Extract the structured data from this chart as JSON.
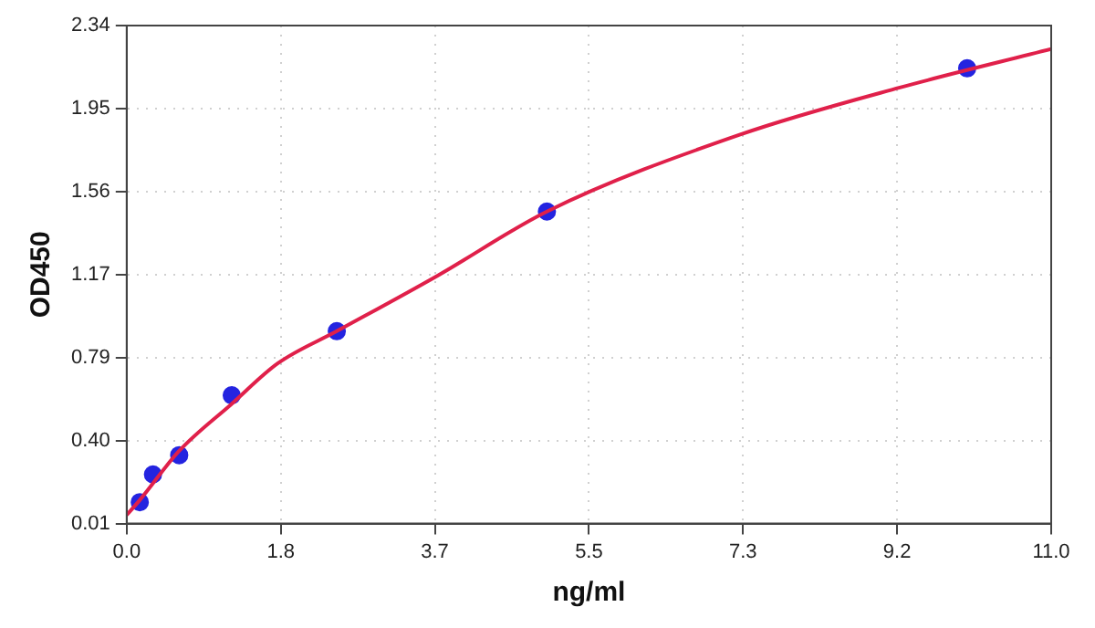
{
  "chart_data": {
    "type": "scatter",
    "xlabel": "ng/ml",
    "ylabel": "OD450",
    "xlim": [
      0,
      11
    ],
    "ylim": [
      0.01,
      2.34
    ],
    "xticks": [
      {
        "value": 0,
        "label": "0.0"
      },
      {
        "value": 1.8333,
        "label": "1.8"
      },
      {
        "value": 3.6667,
        "label": "3.7"
      },
      {
        "value": 5.5,
        "label": "5.5"
      },
      {
        "value": 7.3333,
        "label": "7.3"
      },
      {
        "value": 9.1667,
        "label": "9.2"
      },
      {
        "value": 11,
        "label": "11.0"
      }
    ],
    "yticks": [
      0.01,
      {
        "value": 0.3983,
        "label": "0.40"
      },
      {
        "value": 0.7867,
        "label": "0.79"
      },
      {
        "value": 1.175,
        "label": "1.17"
      },
      {
        "value": 1.5633,
        "label": "1.56"
      },
      {
        "value": 1.9517,
        "label": "1.95"
      },
      2.34
    ],
    "grid": true,
    "legend": false,
    "series": [
      {
        "type": "line",
        "marker": "none",
        "color": "#e0204a",
        "x": [
          0,
          0.156,
          0.625,
          1.25,
          1.8,
          2.5,
          3.7,
          5,
          7.3,
          9.2,
          11
        ],
        "values": [
          0.05,
          0.12,
          0.35,
          0.57,
          0.76,
          0.91,
          1.17,
          1.47,
          1.83,
          2.05,
          2.23
        ]
      },
      {
        "marker": "circle",
        "color": "#2424e0",
        "x": [
          0.156,
          0.313,
          0.625,
          1.25,
          2.5,
          5,
          10
        ],
        "values": [
          0.11,
          0.24,
          0.33,
          0.61,
          0.91,
          1.47,
          2.14
        ]
      }
    ]
  }
}
